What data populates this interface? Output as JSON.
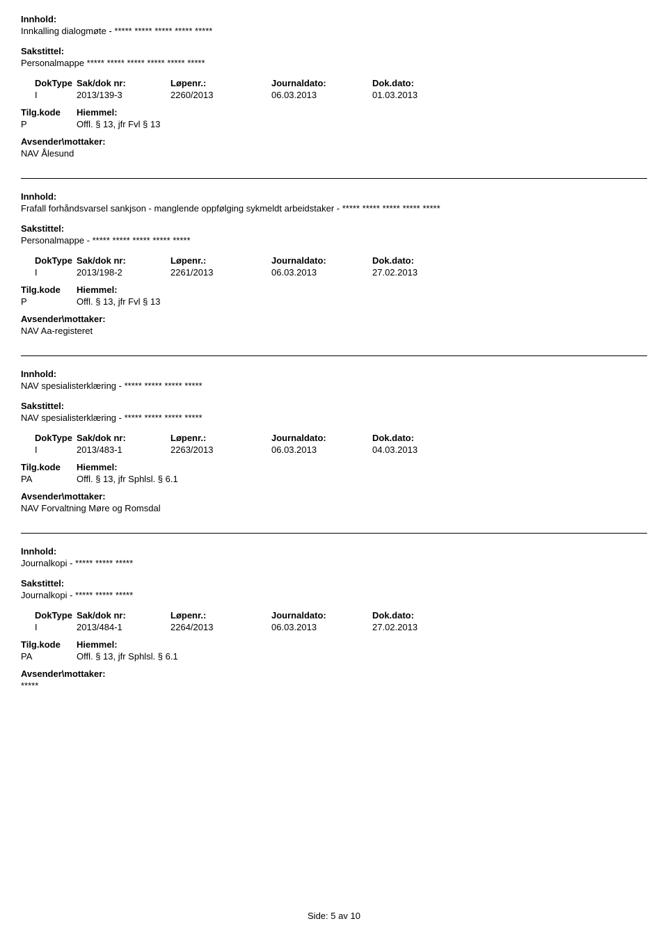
{
  "labels": {
    "innhold": "Innhold:",
    "sakstittel": "Sakstittel:",
    "doktype": "DokType",
    "saknr": "Sak/dok nr:",
    "lopenr": "Løpenr.:",
    "journaldato": "Journaldato:",
    "dokdato": "Dok.dato:",
    "tilgkode": "Tilg.kode",
    "hiemmel": "Hiemmel:",
    "avsender": "Avsender\\mottaker:"
  },
  "records": [
    {
      "innhold": "Innkalling dialogmøte - ***** ***** *****  ***** *****",
      "sakstittel": "Personalmappe ***** ***** ***** *****  ***** *****",
      "doktype": "I",
      "saknr": "2013/139-3",
      "lopenr": "2260/2013",
      "journaldato": "06.03.2013",
      "dokdato": "01.03.2013",
      "tilgkode": "P",
      "hiemmel": "Offl. § 13, jfr Fvl § 13",
      "avsender": "NAV Ålesund",
      "divider": false
    },
    {
      "innhold": "Frafall forhåndsvarsel sankjson - manglende oppfølging sykmeldt arbeidstaker - ***** ***** ***** ***** *****",
      "sakstittel": "Personalmappe - ***** ***** ***** ***** *****",
      "doktype": "I",
      "saknr": "2013/198-2",
      "lopenr": "2261/2013",
      "journaldato": "06.03.2013",
      "dokdato": "27.02.2013",
      "tilgkode": "P",
      "hiemmel": "Offl. § 13, jfr Fvl § 13",
      "avsender": "NAV Aa-registeret",
      "divider": true
    },
    {
      "innhold": "NAV spesialisterklæring - ***** ***** ***** *****",
      "sakstittel": "NAV spesialisterklæring - ***** ***** ***** *****",
      "doktype": "I",
      "saknr": "2013/483-1",
      "lopenr": "2263/2013",
      "journaldato": "06.03.2013",
      "dokdato": "04.03.2013",
      "tilgkode": "PA",
      "hiemmel": "Offl. § 13, jfr Sphlsl. § 6.1",
      "avsender": "NAV Forvaltning Møre og Romsdal",
      "divider": true
    },
    {
      "innhold": "Journalkopi - ***** ***** *****",
      "sakstittel": "Journalkopi - ***** ***** *****",
      "doktype": "I",
      "saknr": "2013/484-1",
      "lopenr": "2264/2013",
      "journaldato": "06.03.2013",
      "dokdato": "27.02.2013",
      "tilgkode": "PA",
      "hiemmel": "Offl. § 13, jfr Sphlsl. § 6.1",
      "avsender": "*****",
      "divider": true
    }
  ],
  "page": {
    "label": "Side:",
    "current": "5",
    "sep": "av",
    "total": "10"
  }
}
